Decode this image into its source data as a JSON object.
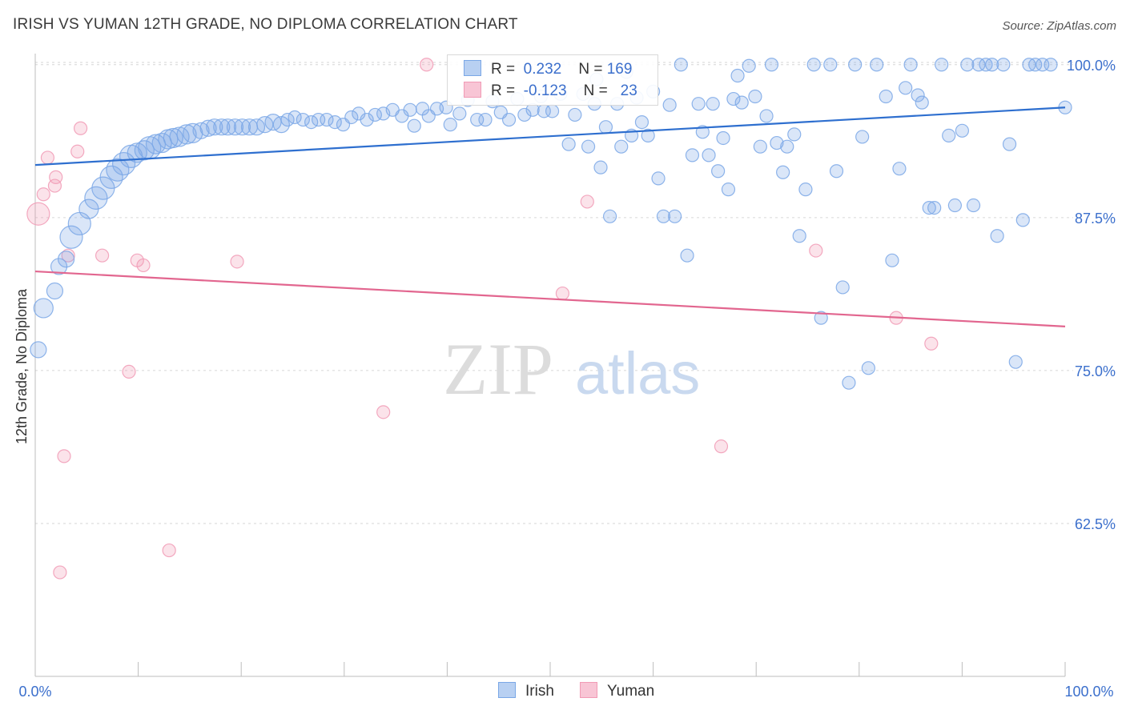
{
  "title": "IRISH VS YUMAN 12TH GRADE, NO DIPLOMA CORRELATION CHART",
  "source": "Source: ZipAtlas.com",
  "watermark": {
    "zip": "ZIP",
    "atlas": "atlas"
  },
  "legend": {
    "r_label": "R =",
    "n_label": "N =",
    "irish": {
      "r": "0.232",
      "n": "169"
    },
    "yuman": {
      "r": "-0.123",
      "n": "23"
    }
  },
  "colors": {
    "irish": "#7aa7e6",
    "irish_line": "#2e6fcf",
    "yuman": "#f19ab5",
    "yuman_line": "#e2668f",
    "tick_label": "#3b6fcc"
  },
  "chart_data": {
    "type": "scatter",
    "xlabel": "",
    "ylabel": "12th Grade, No Diploma",
    "xlim": [
      0,
      100
    ],
    "ylim": [
      50,
      100.9
    ],
    "x_tick_labels": [
      "0.0%",
      "100.0%"
    ],
    "y_ticks": [
      62.5,
      75.0,
      87.5,
      100.0
    ],
    "y_tick_labels": [
      "62.5%",
      "75.0%",
      "87.5%",
      "100.0%"
    ],
    "grid": true,
    "legend_position": "bottom-center",
    "series": [
      {
        "name": "Irish",
        "trend": {
          "x": [
            0,
            100
          ],
          "y": [
            91.8,
            96.5
          ]
        },
        "points": [
          [
            0.3,
            76.7,
            2
          ],
          [
            0.8,
            80.1,
            3
          ],
          [
            1.9,
            81.5,
            2
          ],
          [
            2.3,
            83.5,
            2
          ],
          [
            3.0,
            84.1,
            2
          ],
          [
            3.5,
            85.9,
            4
          ],
          [
            4.3,
            87.0,
            4
          ],
          [
            5.2,
            88.2,
            3
          ],
          [
            5.9,
            89.1,
            4
          ],
          [
            6.6,
            89.9,
            4
          ],
          [
            7.4,
            90.8,
            4
          ],
          [
            8.0,
            91.4,
            4
          ],
          [
            8.6,
            91.9,
            4
          ],
          [
            9.3,
            92.5,
            4
          ],
          [
            9.9,
            92.8,
            3
          ],
          [
            10.6,
            93.0,
            3
          ],
          [
            11.1,
            93.2,
            4
          ],
          [
            11.7,
            93.5,
            3
          ],
          [
            12.3,
            93.6,
            3
          ],
          [
            12.9,
            93.9,
            3
          ],
          [
            13.4,
            94.0,
            3
          ],
          [
            14.0,
            94.1,
            3
          ],
          [
            14.7,
            94.3,
            3
          ],
          [
            15.3,
            94.4,
            3
          ],
          [
            16.1,
            94.6,
            2
          ],
          [
            16.8,
            94.8,
            2
          ],
          [
            17.4,
            94.9,
            2
          ],
          [
            18.1,
            94.9,
            2
          ],
          [
            18.7,
            94.9,
            2
          ],
          [
            19.4,
            94.9,
            2
          ],
          [
            20.1,
            94.9,
            2
          ],
          [
            20.8,
            94.9,
            2
          ],
          [
            21.5,
            94.9,
            2
          ],
          [
            22.3,
            95.1,
            2
          ],
          [
            23.1,
            95.3,
            2
          ],
          [
            23.9,
            95.1,
            2
          ],
          [
            24.5,
            95.5,
            1
          ],
          [
            25.2,
            95.7,
            1
          ],
          [
            26.0,
            95.5,
            1
          ],
          [
            26.8,
            95.3,
            1
          ],
          [
            27.5,
            95.5,
            1
          ],
          [
            28.3,
            95.5,
            1
          ],
          [
            29.1,
            95.3,
            1
          ],
          [
            29.9,
            95.1,
            1
          ],
          [
            30.7,
            95.7,
            1
          ],
          [
            31.4,
            96.0,
            1
          ],
          [
            32.2,
            95.5,
            1
          ],
          [
            33.0,
            95.9,
            1
          ],
          [
            33.8,
            96.0,
            1
          ],
          [
            34.7,
            96.3,
            1
          ],
          [
            35.6,
            95.8,
            1
          ],
          [
            36.4,
            96.3,
            1
          ],
          [
            36.8,
            95.0,
            1
          ],
          [
            37.6,
            96.4,
            1
          ],
          [
            38.2,
            95.8,
            1
          ],
          [
            39.0,
            96.4,
            1
          ],
          [
            39.9,
            96.5,
            1
          ],
          [
            40.3,
            95.1,
            1
          ],
          [
            41.2,
            96.0,
            1
          ],
          [
            42.0,
            97.1,
            1
          ],
          [
            42.9,
            95.5,
            1
          ],
          [
            43.7,
            95.5,
            1
          ],
          [
            44.4,
            97.0,
            1
          ],
          [
            45.2,
            96.1,
            1
          ],
          [
            46.0,
            95.5,
            1
          ],
          [
            46.8,
            97.2,
            1
          ],
          [
            47.5,
            95.9,
            1
          ],
          [
            48.3,
            96.3,
            1
          ],
          [
            49.1,
            97.4,
            1
          ],
          [
            49.4,
            96.2,
            1
          ],
          [
            50.2,
            96.2,
            1
          ],
          [
            51.0,
            97.6,
            1
          ],
          [
            51.8,
            93.5,
            1
          ],
          [
            52.4,
            95.9,
            1
          ],
          [
            53.2,
            97.6,
            1
          ],
          [
            53.7,
            93.3,
            1
          ],
          [
            54.3,
            96.8,
            1
          ],
          [
            54.5,
            98.8,
            1
          ],
          [
            54.9,
            91.6,
            1
          ],
          [
            55.4,
            94.9,
            1
          ],
          [
            55.8,
            87.6,
            1
          ],
          [
            56.5,
            96.8,
            1
          ],
          [
            56.9,
            93.3,
            1
          ],
          [
            57.4,
            99.4,
            1
          ],
          [
            57.9,
            94.2,
            1
          ],
          [
            58.4,
            97.3,
            1
          ],
          [
            58.9,
            95.3,
            1
          ],
          [
            59.5,
            94.2,
            1
          ],
          [
            60.0,
            97.8,
            1
          ],
          [
            60.5,
            90.7,
            1
          ],
          [
            61.0,
            87.6,
            1
          ],
          [
            61.6,
            96.7,
            1
          ],
          [
            62.1,
            87.6,
            1
          ],
          [
            62.7,
            100.0,
            1
          ],
          [
            63.3,
            84.4,
            1
          ],
          [
            63.8,
            92.6,
            1
          ],
          [
            64.4,
            96.8,
            1
          ],
          [
            64.8,
            94.5,
            1
          ],
          [
            65.4,
            92.6,
            1
          ],
          [
            65.8,
            96.8,
            1
          ],
          [
            66.3,
            91.3,
            1
          ],
          [
            66.8,
            94.0,
            1
          ],
          [
            67.3,
            89.8,
            1
          ],
          [
            67.8,
            97.2,
            1
          ],
          [
            68.2,
            99.1,
            1
          ],
          [
            68.6,
            96.9,
            1
          ],
          [
            69.3,
            99.9,
            1
          ],
          [
            69.9,
            97.4,
            1
          ],
          [
            70.4,
            93.3,
            1
          ],
          [
            71.0,
            95.8,
            1
          ],
          [
            71.5,
            100.0,
            1
          ],
          [
            72.0,
            93.6,
            1
          ],
          [
            72.6,
            91.2,
            1
          ],
          [
            73.0,
            93.3,
            1
          ],
          [
            73.7,
            94.3,
            1
          ],
          [
            74.2,
            86.0,
            1
          ],
          [
            74.8,
            89.8,
            1
          ],
          [
            75.6,
            100.0,
            1
          ],
          [
            76.3,
            79.3,
            1
          ],
          [
            77.2,
            100.0,
            1
          ],
          [
            77.8,
            91.3,
            1
          ],
          [
            78.4,
            81.8,
            1
          ],
          [
            79.0,
            74.0,
            1
          ],
          [
            79.6,
            100.0,
            1
          ],
          [
            80.3,
            94.1,
            1
          ],
          [
            80.9,
            75.2,
            1
          ],
          [
            81.7,
            100.0,
            1
          ],
          [
            82.6,
            97.4,
            1
          ],
          [
            83.2,
            84.0,
            1
          ],
          [
            83.9,
            91.5,
            1
          ],
          [
            84.5,
            98.1,
            1
          ],
          [
            85.0,
            100.0,
            1
          ],
          [
            85.7,
            97.5,
            1
          ],
          [
            86.1,
            96.9,
            1
          ],
          [
            86.8,
            88.3,
            1
          ],
          [
            87.3,
            88.3,
            1
          ],
          [
            88.0,
            100.0,
            1
          ],
          [
            88.7,
            94.2,
            1
          ],
          [
            89.3,
            88.5,
            1
          ],
          [
            90.0,
            94.6,
            1
          ],
          [
            90.5,
            100.0,
            1
          ],
          [
            91.1,
            88.5,
            1
          ],
          [
            91.6,
            100.0,
            1
          ],
          [
            92.3,
            100.0,
            1
          ],
          [
            92.9,
            100.0,
            1
          ],
          [
            93.4,
            86.0,
            1
          ],
          [
            94.0,
            100.0,
            1
          ],
          [
            94.6,
            93.5,
            1
          ],
          [
            95.2,
            75.7,
            1
          ],
          [
            95.9,
            87.3,
            1
          ],
          [
            96.5,
            100.0,
            1
          ],
          [
            97.1,
            100.0,
            1
          ],
          [
            97.8,
            100.0,
            1
          ],
          [
            98.6,
            100.0,
            1
          ],
          [
            100.0,
            96.5,
            1
          ]
        ]
      },
      {
        "name": "Yuman",
        "trend": {
          "x": [
            0,
            100
          ],
          "y": [
            83.1,
            78.6
          ]
        },
        "points": [
          [
            0.3,
            87.8,
            4
          ],
          [
            0.8,
            89.4,
            1
          ],
          [
            1.2,
            92.4,
            1
          ],
          [
            1.9,
            90.1,
            1
          ],
          [
            2.0,
            90.8,
            1
          ],
          [
            2.4,
            58.5,
            1
          ],
          [
            2.8,
            68.0,
            1
          ],
          [
            3.2,
            84.4,
            1
          ],
          [
            4.1,
            92.9,
            1
          ],
          [
            4.4,
            94.8,
            1
          ],
          [
            6.5,
            84.4,
            1
          ],
          [
            9.1,
            74.9,
            1
          ],
          [
            9.9,
            84.0,
            1
          ],
          [
            10.5,
            83.6,
            1
          ],
          [
            13.0,
            60.3,
            1
          ],
          [
            19.6,
            83.9,
            1
          ],
          [
            33.8,
            71.6,
            1
          ],
          [
            38.0,
            100.0,
            1
          ],
          [
            51.2,
            81.3,
            1
          ],
          [
            53.6,
            88.8,
            1
          ],
          [
            66.6,
            68.8,
            1
          ],
          [
            75.8,
            84.8,
            1
          ],
          [
            83.6,
            79.3,
            1
          ],
          [
            87.0,
            77.2,
            1
          ]
        ]
      }
    ]
  }
}
